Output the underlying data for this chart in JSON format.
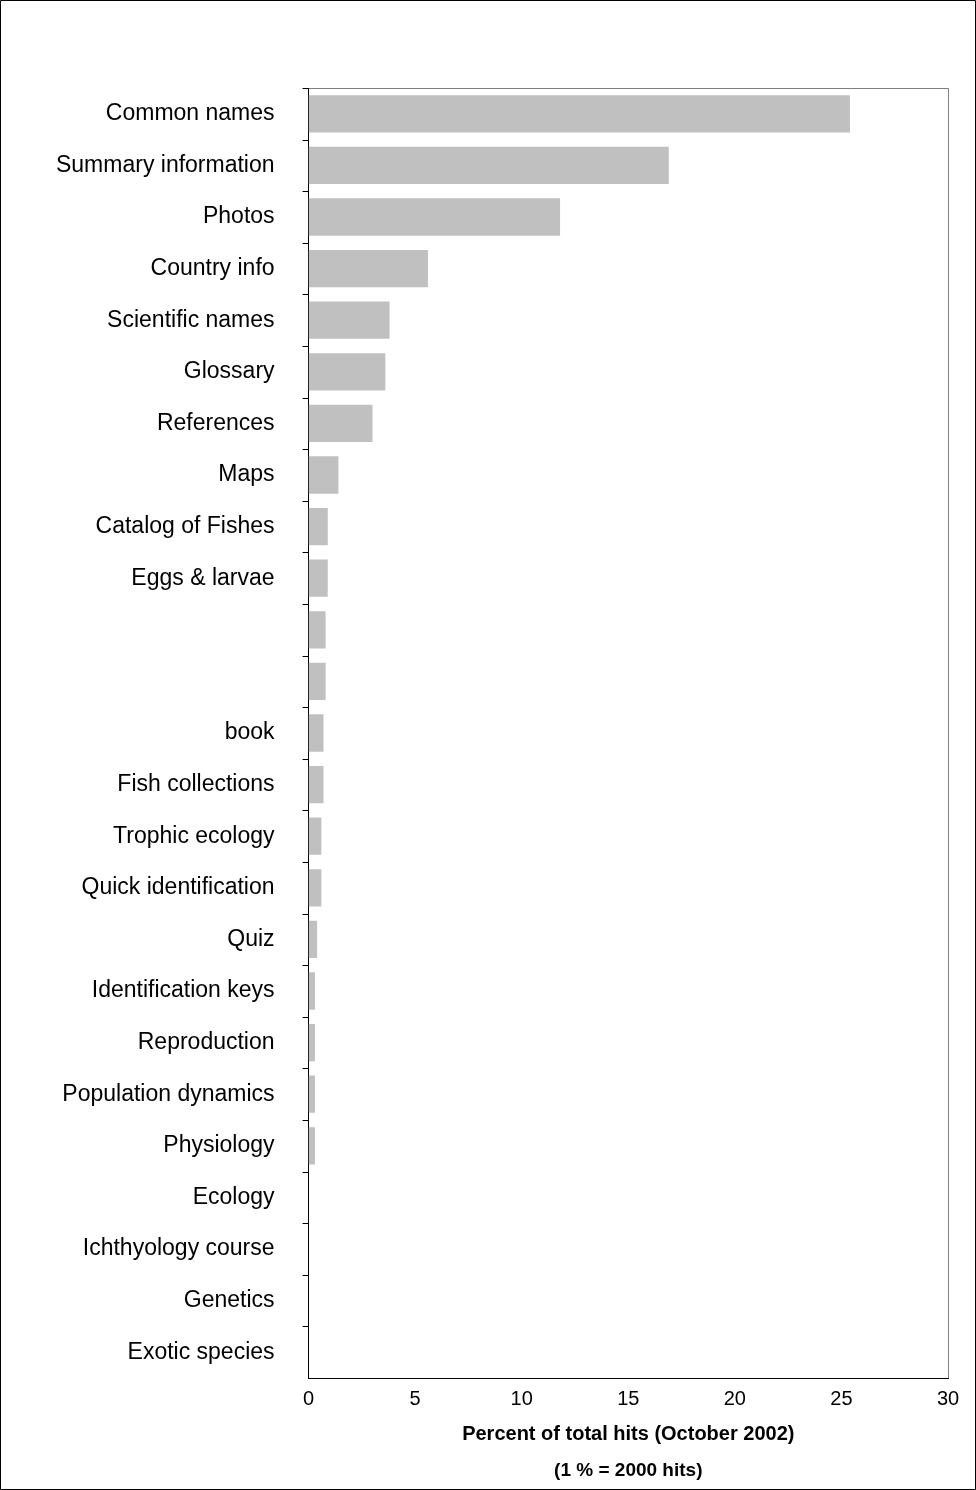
{
  "chart_data": {
    "type": "bar",
    "orientation": "horizontal",
    "xlabel": "Percent of total hits (October 2002)",
    "annotations": [
      "(1 % = 2000 hits)"
    ],
    "categories": [
      "Common names",
      "Summary information",
      "Photos",
      "Country info",
      "Scientific names",
      "Glossary",
      "References",
      "Maps",
      "Catalog of Fishes",
      "Eggs & larvae",
      null,
      null,
      "book",
      "Fish collections",
      "Trophic ecology",
      "Quick identification",
      "Quiz",
      "Identification keys",
      "Reproduction",
      "Population dynamics",
      "Physiology",
      "Ecology",
      "Ichthyology course",
      "Genetics",
      "Exotic species"
    ],
    "values": [
      25.4,
      16.9,
      11.8,
      5.6,
      3.8,
      3.6,
      3.0,
      1.4,
      0.9,
      0.9,
      0.8,
      0.8,
      0.7,
      0.7,
      0.6,
      0.6,
      0.4,
      0.3,
      0.3,
      0.3,
      0.3,
      0,
      0,
      0,
      0
    ],
    "color": "#c0c0c0",
    "xlim": [
      0,
      30
    ],
    "xticks": [
      0,
      5,
      10,
      15,
      20,
      25,
      30
    ],
    "grid": false,
    "legend": false
  }
}
